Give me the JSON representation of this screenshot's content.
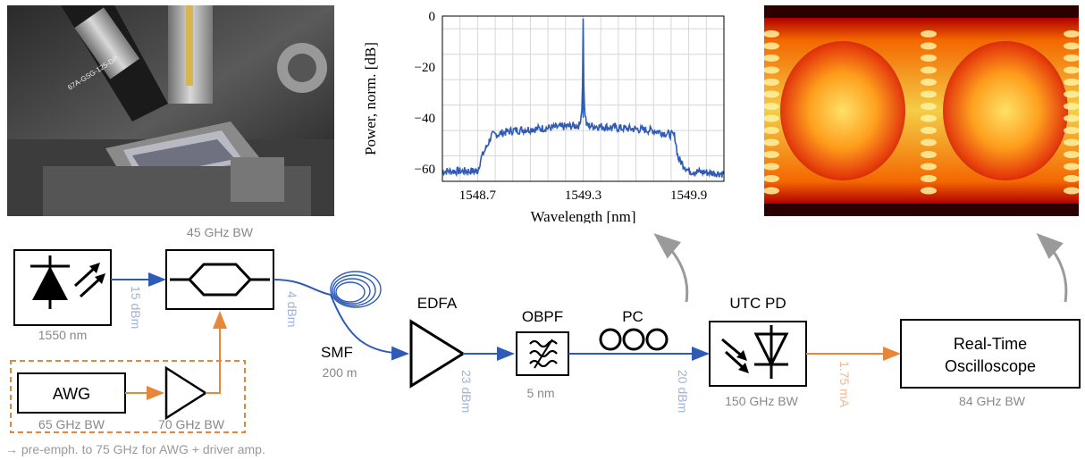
{
  "photo": {
    "engraved_text": "67A-GSG-125-DP"
  },
  "spectrum": {
    "chart_data": {
      "type": "line",
      "ylabel": "Power, norm. [dB]",
      "xlabel": "Wavelength [nm]",
      "xlim": [
        1548.5,
        1550.1
      ],
      "ylim": [
        -65,
        0
      ],
      "x_ticks": [
        "1548.7",
        "1549.3",
        "1549.9"
      ],
      "y_ticks": [
        "0",
        "−20",
        "−40",
        "−60"
      ],
      "grid": true,
      "series": [
        {
          "x": [
            1548.5,
            1548.7,
            1548.72,
            1548.78,
            1548.9,
            1549.1,
            1549.28,
            1549.295,
            1549.3,
            1549.305,
            1549.32,
            1549.5,
            1549.7,
            1549.82,
            1549.84,
            1549.9,
            1550.1
          ],
          "y": [
            -61,
            -61,
            -56,
            -47,
            -45,
            -44,
            -43,
            -35,
            -1,
            -35,
            -43,
            -44,
            -45,
            -47,
            -56,
            -61,
            -62
          ]
        }
      ],
      "color": "#2f5bb7"
    }
  },
  "diagram": {
    "laser": {
      "caption": "1550 nm"
    },
    "laser_power": "15 dBm",
    "modulator": {
      "bandwidth": "45 GHz BW"
    },
    "mod_out_power": "4 dBm",
    "fiber": {
      "label": "SMF",
      "length": "200 m"
    },
    "edfa": {
      "label": "EDFA"
    },
    "edfa_out_power": "23 dBm",
    "obpf": {
      "label": "OBPF",
      "bandwidth": "5 nm"
    },
    "pc": {
      "label": "PC"
    },
    "pd_in_power": "20 dBm",
    "pd": {
      "label": "UTC PD",
      "bandwidth": "150 GHz BW"
    },
    "photocurrent": "1.75 mA",
    "scope": {
      "line1": "Real-Time",
      "line2": "Oscilloscope",
      "bandwidth": "84 GHz BW"
    },
    "awg": {
      "label": "AWG",
      "bandwidth": "65 GHz BW"
    },
    "amp": {
      "bandwidth": "70 GHz BW"
    },
    "footnote": "→ pre-emph. to 75 GHz for AWG + driver amp."
  },
  "colors": {
    "optical": "#2f5bb7",
    "electrical": "#e8863a",
    "muted_optical": "#9fb3d9",
    "muted_electrical": "#f2b98f",
    "gray": "#888888"
  }
}
